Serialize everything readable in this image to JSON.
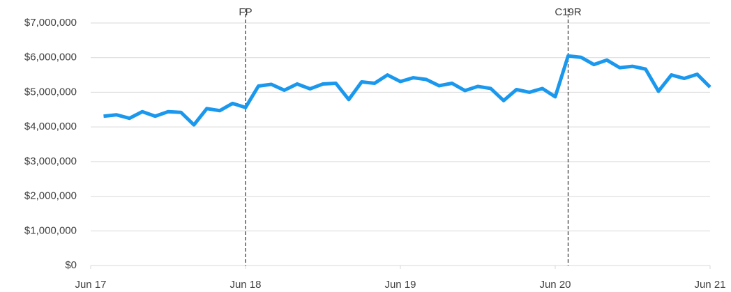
{
  "chart_data": {
    "type": "line",
    "categories": [
      "Jun 17",
      null,
      null,
      null,
      null,
      null,
      null,
      null,
      null,
      null,
      null,
      null,
      "Jun 18",
      null,
      null,
      null,
      null,
      null,
      null,
      null,
      null,
      null,
      null,
      null,
      "Jun 19",
      null,
      null,
      null,
      null,
      null,
      null,
      null,
      null,
      null,
      null,
      null,
      "Jun 20",
      null,
      null,
      null,
      null,
      null,
      null,
      null,
      null,
      null,
      null,
      null,
      "Jun 21"
    ],
    "series": [
      {
        "name": null,
        "color": "#1a98ee",
        "values": [
          null,
          4310000,
          4350000,
          4250000,
          4440000,
          4310000,
          4440000,
          4420000,
          4060000,
          4530000,
          4470000,
          4680000,
          4560000,
          5180000,
          5230000,
          5060000,
          5240000,
          5100000,
          5240000,
          5260000,
          4790000,
          5300000,
          5260000,
          5500000,
          5310000,
          5420000,
          5370000,
          5190000,
          5260000,
          5050000,
          5170000,
          5110000,
          4760000,
          5080000,
          5000000,
          5110000,
          4870000,
          6050000,
          6010000,
          5800000,
          5930000,
          5710000,
          5750000,
          5670000,
          5030000,
          5500000,
          5400000,
          5520000,
          5150000
        ]
      }
    ],
    "ylim": [
      0,
      7000000
    ],
    "yticks": [
      {
        "value": 0,
        "label": "$0"
      },
      {
        "value": 1000000,
        "label": "$1,000,000"
      },
      {
        "value": 2000000,
        "label": "$2,000,000"
      },
      {
        "value": 3000000,
        "label": "$3,000,000"
      },
      {
        "value": 4000000,
        "label": "$4,000,000"
      },
      {
        "value": 5000000,
        "label": "$5,000,000"
      },
      {
        "value": 6000000,
        "label": "$6,000,000"
      },
      {
        "value": 7000000,
        "label": "$7,000,000"
      }
    ],
    "grid": true,
    "annotations": [
      {
        "text": "FP",
        "index": 12
      },
      {
        "text": "C19R",
        "index": 37
      }
    ]
  }
}
